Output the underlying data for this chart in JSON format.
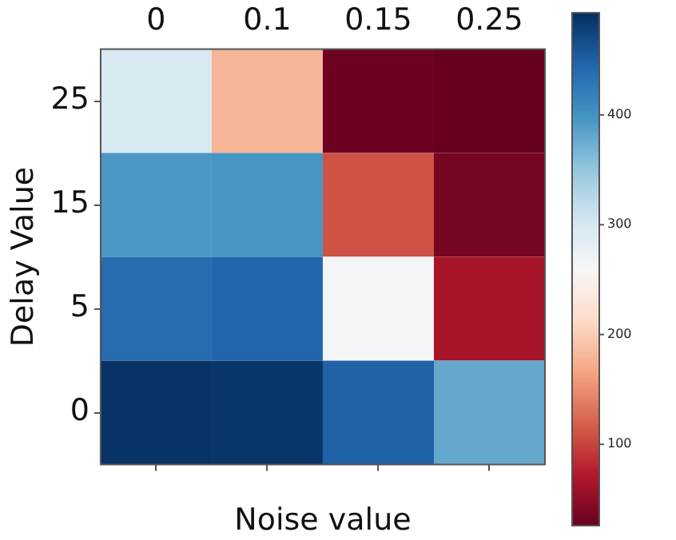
{
  "chart_data": {
    "type": "heatmap",
    "xlabel": "Noise value",
    "ylabel": "Delay Value",
    "categories": [
      "0",
      "0.1",
      "0.15",
      "0.25"
    ],
    "y_categories": [
      "25",
      "15",
      "5",
      "0"
    ],
    "cells": [
      [
        297,
        180,
        30,
        26
      ],
      [
        395,
        398,
        110,
        35
      ],
      [
        440,
        445,
        265,
        65
      ],
      [
        490,
        488,
        450,
        380
      ]
    ],
    "clim": [
      26,
      493
    ],
    "cticks": [
      100,
      200,
      300,
      400
    ],
    "grid": false
  }
}
